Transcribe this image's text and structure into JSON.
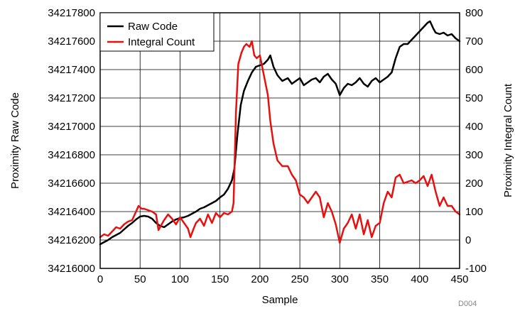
{
  "chart_data": {
    "type": "line",
    "figure_id": "D004",
    "xlabel": "Sample",
    "ylabel": "Proximity Raw Code",
    "y2label": "Proximity Integral Count",
    "xlim": [
      0,
      450
    ],
    "ylim": [
      34216000,
      34217800
    ],
    "y2lim": [
      -100,
      800
    ],
    "xticks": [
      "0",
      "50",
      "100",
      "150",
      "200",
      "250",
      "300",
      "350",
      "400",
      "450"
    ],
    "yticks": [
      "34216000",
      "34216200",
      "34216400",
      "34216600",
      "34216800",
      "34217000",
      "34217200",
      "34217400",
      "34217600",
      "34217800"
    ],
    "y2ticks": [
      "-100",
      "0",
      "100",
      "200",
      "300",
      "400",
      "500",
      "600",
      "700",
      "800"
    ],
    "grid": true,
    "legend": "top-left",
    "series": [
      {
        "name": "Raw Code",
        "axis": "left",
        "color": "#000000",
        "x": [
          0,
          5,
          10,
          15,
          20,
          25,
          30,
          35,
          40,
          45,
          50,
          55,
          60,
          65,
          70,
          75,
          80,
          85,
          90,
          95,
          100,
          105,
          110,
          115,
          120,
          125,
          130,
          135,
          140,
          145,
          150,
          155,
          160,
          165,
          168,
          172,
          176,
          180,
          185,
          190,
          195,
          200,
          205,
          210,
          213,
          217,
          222,
          228,
          235,
          240,
          245,
          250,
          255,
          260,
          265,
          270,
          275,
          280,
          285,
          290,
          295,
          300,
          305,
          310,
          315,
          320,
          325,
          330,
          335,
          340,
          345,
          350,
          355,
          360,
          365,
          370,
          375,
          380,
          385,
          390,
          395,
          400,
          405,
          410,
          413,
          417,
          420,
          425,
          430,
          435,
          440,
          445,
          450
        ],
        "y": [
          34216170,
          34216185,
          34216200,
          34216220,
          34216235,
          34216250,
          34216275,
          34216300,
          34216320,
          34216345,
          34216365,
          34216370,
          34216365,
          34216350,
          34216320,
          34216300,
          34216290,
          34216310,
          34216330,
          34216345,
          34216355,
          34216360,
          34216370,
          34216385,
          34216400,
          34216420,
          34216430,
          34216445,
          34216460,
          34216475,
          34216500,
          34216520,
          34216560,
          34216620,
          34216700,
          34216950,
          34217150,
          34217250,
          34217320,
          34217380,
          34217420,
          34217430,
          34217440,
          34217470,
          34217500,
          34217420,
          34217360,
          34217320,
          34217340,
          34217300,
          34217320,
          34217340,
          34217290,
          34217310,
          34217330,
          34217340,
          34217310,
          34217350,
          34217370,
          34217330,
          34217300,
          34217220,
          34217270,
          34217300,
          34217290,
          34217310,
          34217340,
          34217300,
          34217280,
          34217320,
          34217340,
          34217310,
          34217330,
          34217350,
          34217380,
          34217480,
          34217560,
          34217580,
          34217580,
          34217610,
          34217640,
          34217670,
          34217700,
          34217730,
          34217740,
          34217690,
          34217660,
          34217650,
          34217660,
          34217640,
          34217650,
          34217620,
          34217600
        ]
      },
      {
        "name": "Integral Count",
        "axis": "right",
        "color": "#e8100e",
        "x": [
          0,
          5,
          10,
          15,
          20,
          25,
          30,
          35,
          40,
          45,
          48,
          52,
          55,
          60,
          65,
          70,
          73,
          77,
          80,
          85,
          90,
          95,
          100,
          105,
          110,
          113,
          117,
          120,
          125,
          130,
          135,
          140,
          145,
          150,
          155,
          160,
          165,
          167,
          170,
          173,
          177,
          180,
          183,
          187,
          190,
          193,
          196,
          200,
          205,
          210,
          213,
          217,
          222,
          228,
          235,
          240,
          245,
          250,
          255,
          260,
          265,
          270,
          275,
          280,
          285,
          290,
          295,
          300,
          305,
          310,
          315,
          320,
          325,
          330,
          335,
          340,
          345,
          350,
          355,
          360,
          365,
          370,
          375,
          380,
          385,
          390,
          395,
          400,
          405,
          410,
          415,
          420,
          425,
          430,
          435,
          440,
          445,
          450
        ],
        "y": [
          10,
          20,
          15,
          30,
          45,
          40,
          55,
          65,
          70,
          100,
          120,
          110,
          110,
          105,
          100,
          90,
          35,
          55,
          70,
          90,
          75,
          55,
          80,
          60,
          40,
          10,
          40,
          60,
          75,
          50,
          90,
          60,
          95,
          80,
          95,
          90,
          100,
          130,
          450,
          620,
          660,
          680,
          690,
          680,
          700,
          650,
          640,
          650,
          580,
          510,
          420,
          340,
          280,
          260,
          260,
          230,
          210,
          160,
          150,
          130,
          150,
          170,
          150,
          80,
          130,
          100,
          55,
          -10,
          40,
          60,
          90,
          40,
          90,
          20,
          70,
          10,
          50,
          60,
          130,
          170,
          150,
          220,
          230,
          200,
          205,
          210,
          200,
          210,
          225,
          190,
          230,
          170,
          120,
          150,
          120,
          120,
          100,
          90
        ]
      }
    ]
  }
}
